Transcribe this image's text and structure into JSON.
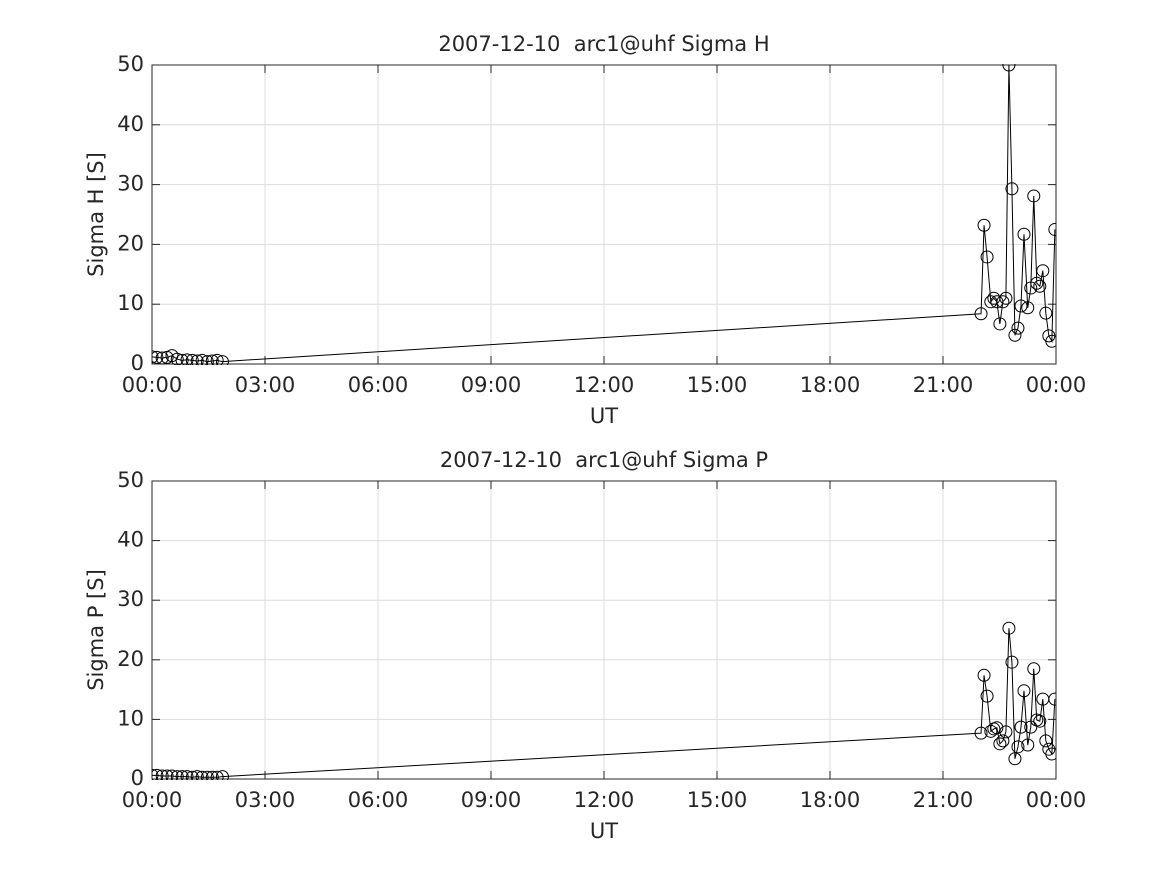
{
  "chart_data": [
    {
      "type": "line",
      "title": "2007-12-10  arc1@uhf Sigma H",
      "xlabel": "UT",
      "ylabel": "Sigma H [S]",
      "color": "#000000",
      "marker": "circle",
      "grid": true,
      "x": [
        0.0,
        0.13,
        0.27,
        0.4,
        0.53,
        0.67,
        0.8,
        0.93,
        1.07,
        1.2,
        1.33,
        1.47,
        1.6,
        1.73,
        1.87,
        22.01,
        22.09,
        22.17,
        22.27,
        22.35,
        22.43,
        22.51,
        22.59,
        22.67,
        22.75,
        22.83,
        22.91,
        22.99,
        23.07,
        23.15,
        23.25,
        23.33,
        23.41,
        23.49,
        23.57,
        23.65,
        23.73,
        23.81,
        23.89,
        23.97
      ],
      "values": [
        1.2,
        1.1,
        1.0,
        1.1,
        1.4,
        0.8,
        0.6,
        0.7,
        0.6,
        0.5,
        0.6,
        0.4,
        0.5,
        0.6,
        0.4,
        8.4,
        23.2,
        17.9,
        10.4,
        11.0,
        10.4,
        6.7,
        10.4,
        11.0,
        50,
        29.3,
        4.8,
        6.0,
        9.7,
        21.7,
        9.4,
        12.7,
        28.1,
        13.5,
        13.0,
        15.6,
        8.5,
        4.7,
        3.8,
        22.5
      ],
      "xlim": [
        0,
        24
      ],
      "xticks": [
        {
          "value": 0,
          "label": "00:00"
        },
        {
          "value": 3,
          "label": "03:00"
        },
        {
          "value": 6,
          "label": "06:00"
        },
        {
          "value": 9,
          "label": "09:00"
        },
        {
          "value": 12,
          "label": "12:00"
        },
        {
          "value": 15,
          "label": "15:00"
        },
        {
          "value": 18,
          "label": "18:00"
        },
        {
          "value": 21,
          "label": "21:00"
        },
        {
          "value": 24,
          "label": "00:00"
        }
      ],
      "ylim": [
        0,
        50
      ],
      "yticks": [
        0,
        10,
        20,
        30,
        40,
        50
      ]
    },
    {
      "type": "line",
      "title": "2007-12-10  arc1@uhf Sigma P",
      "xlabel": "UT",
      "ylabel": "Sigma P [S]",
      "color": "#000000",
      "marker": "circle",
      "grid": true,
      "x": [
        0.0,
        0.13,
        0.27,
        0.4,
        0.53,
        0.67,
        0.8,
        0.93,
        1.07,
        1.2,
        1.33,
        1.47,
        1.6,
        1.73,
        1.87,
        22.01,
        22.09,
        22.17,
        22.27,
        22.35,
        22.43,
        22.51,
        22.59,
        22.67,
        22.75,
        22.83,
        22.91,
        22.99,
        23.07,
        23.15,
        23.25,
        23.33,
        23.41,
        23.49,
        23.57,
        23.65,
        23.73,
        23.81,
        23.89,
        23.97
      ],
      "values": [
        0.6,
        0.6,
        0.5,
        0.5,
        0.5,
        0.4,
        0.4,
        0.4,
        0.3,
        0.4,
        0.3,
        0.3,
        0.3,
        0.3,
        0.4,
        7.7,
        17.4,
        13.9,
        8.0,
        8.4,
        8.6,
        5.9,
        6.4,
        7.9,
        25.3,
        19.6,
        3.4,
        5.4,
        8.7,
        14.8,
        5.7,
        8.7,
        18.5,
        9.9,
        9.7,
        13.4,
        6.4,
        5.0,
        4.2,
        13.4
      ],
      "xlim": [
        0,
        24
      ],
      "xticks": [
        {
          "value": 0,
          "label": "00:00"
        },
        {
          "value": 3,
          "label": "03:00"
        },
        {
          "value": 6,
          "label": "06:00"
        },
        {
          "value": 9,
          "label": "09:00"
        },
        {
          "value": 12,
          "label": "12:00"
        },
        {
          "value": 15,
          "label": "15:00"
        },
        {
          "value": 18,
          "label": "18:00"
        },
        {
          "value": 21,
          "label": "21:00"
        },
        {
          "value": 24,
          "label": "00:00"
        }
      ],
      "ylim": [
        0,
        50
      ],
      "yticks": [
        0,
        10,
        20,
        30,
        40,
        50
      ]
    }
  ]
}
